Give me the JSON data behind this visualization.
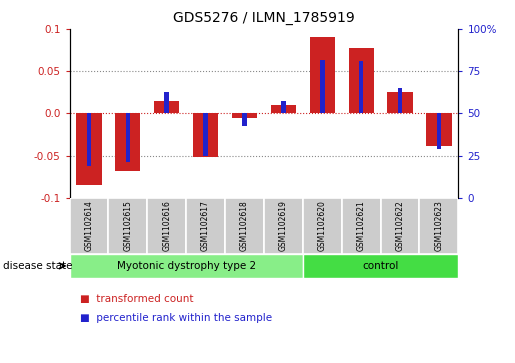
{
  "title": "GDS5276 / ILMN_1785919",
  "samples": [
    "GSM1102614",
    "GSM1102615",
    "GSM1102616",
    "GSM1102617",
    "GSM1102618",
    "GSM1102619",
    "GSM1102620",
    "GSM1102621",
    "GSM1102622",
    "GSM1102623"
  ],
  "red_values": [
    -0.085,
    -0.068,
    0.015,
    -0.052,
    -0.005,
    0.01,
    0.09,
    0.078,
    0.025,
    -0.038
  ],
  "blue_values": [
    -0.062,
    -0.057,
    0.025,
    -0.05,
    -0.015,
    0.015,
    0.063,
    0.062,
    0.03,
    -0.042
  ],
  "ylim": [
    -0.1,
    0.1
  ],
  "yticks_left": [
    -0.1,
    -0.05,
    0.0,
    0.05,
    0.1
  ],
  "red_color": "#cc2222",
  "blue_color": "#2222cc",
  "red_bar_width": 0.65,
  "blue_bar_width": 0.12,
  "disease_groups": [
    {
      "label": "Myotonic dystrophy type 2",
      "start": 0,
      "end": 6,
      "color": "#88ee88"
    },
    {
      "label": "control",
      "start": 6,
      "end": 10,
      "color": "#44dd44"
    }
  ],
  "disease_state_label": "disease state",
  "legend_items": [
    {
      "label": "transformed count",
      "color": "#cc2222"
    },
    {
      "label": "percentile rank within the sample",
      "color": "#2222cc"
    }
  ],
  "grid_color": "#888888",
  "zero_line_color": "#cc2222",
  "sample_box_color": "#cccccc",
  "bg_color": "#ffffff"
}
